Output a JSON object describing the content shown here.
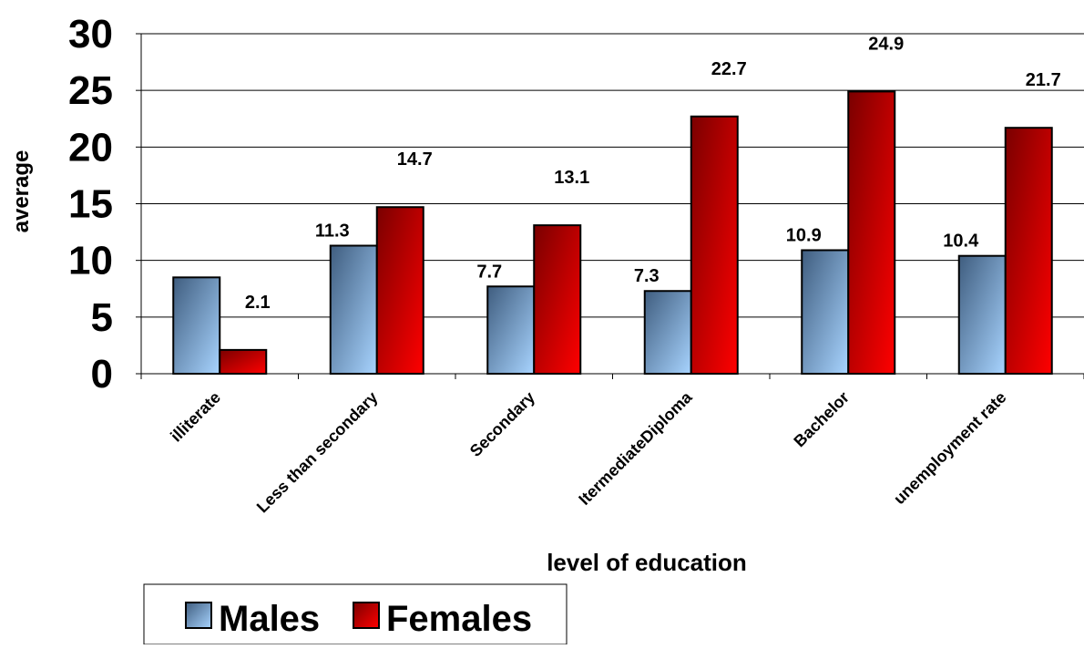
{
  "chart_data": {
    "type": "bar",
    "xlabel": "level of education",
    "ylabel": "average",
    "ylim": [
      0,
      30
    ],
    "yticks": [
      0,
      5,
      10,
      15,
      20,
      25,
      30
    ],
    "grid": true,
    "legend_position": "bottom-left",
    "categories": [
      "illiterate",
      "Less than secondary",
      "Secondary",
      "ItermediateDiploma",
      "Bachelor",
      "unemployment rate"
    ],
    "series": [
      {
        "name": "Males",
        "values": [
          8.5,
          11.3,
          7.7,
          7.3,
          10.9,
          10.4
        ],
        "data_labels": [
          "",
          "11.3",
          "7.7",
          "7.3",
          "10.9",
          "10.4"
        ],
        "colors": [
          "#3f5d7f",
          "#a8d4ff"
        ]
      },
      {
        "name": "Females",
        "values": [
          2.1,
          14.7,
          13.1,
          22.7,
          24.9,
          21.7
        ],
        "data_labels": [
          "2.1",
          "14.7",
          "13.1",
          "22.7",
          "24.9",
          "21.7"
        ],
        "colors": [
          "#7a0000",
          "#ff0000"
        ]
      }
    ]
  }
}
